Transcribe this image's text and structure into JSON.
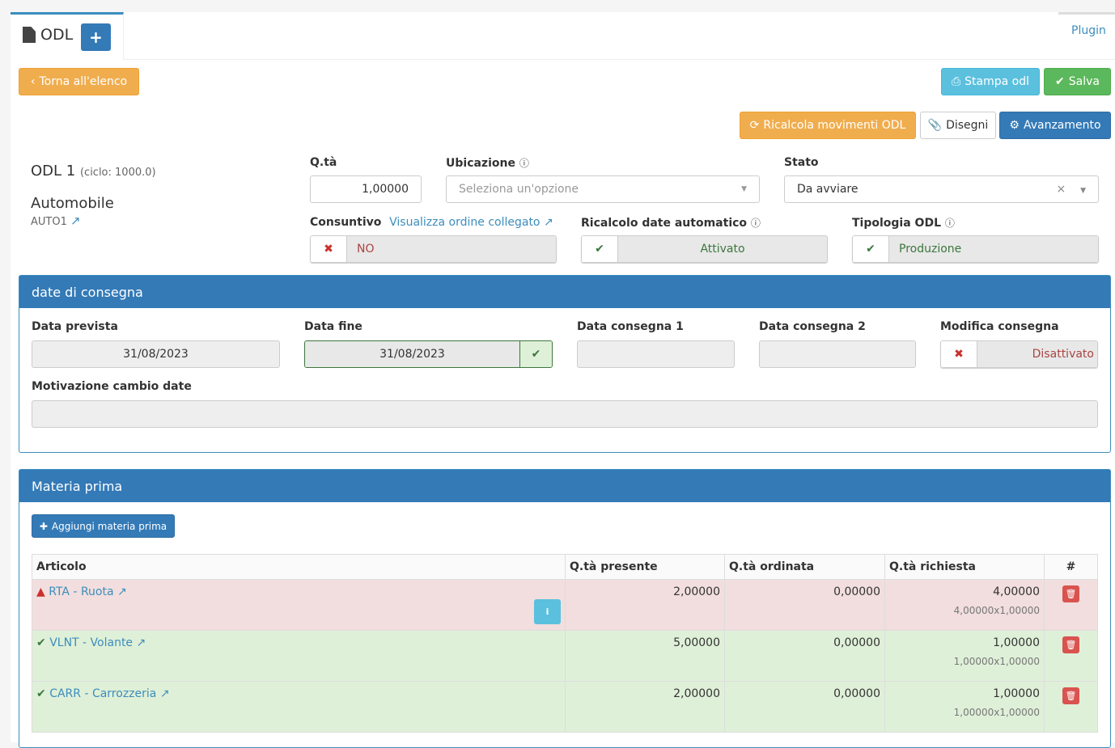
{
  "tab": {
    "title": "ODL",
    "plugin": "Plugin"
  },
  "toolbar": {
    "back": "Torna all'elenco",
    "print": "Stampa odl",
    "save": "Salva",
    "recalc": "Ricalcola movimenti ODL",
    "drawings": "Disegni",
    "progress": "Avanzamento"
  },
  "odl": {
    "name": "ODL 1",
    "cycle": "(ciclo: 1000.0)",
    "product": "Automobile",
    "code": "AUTO1"
  },
  "form": {
    "qty_label": "Q.tà",
    "qty": "1,00000",
    "location_label": "Ubicazione",
    "location_placeholder": "Seleziona un'opzione",
    "state_label": "Stato",
    "state": "Da avviare",
    "final_label": "Consuntivo",
    "linked_order": "Visualizza ordine collegato",
    "final": "NO",
    "recalc_label": "Ricalcolo date automatico",
    "recalc": "Attivato",
    "type_label": "Tipologia ODL",
    "type": "Produzione"
  },
  "delivery": {
    "title": "date di consegna",
    "planned_label": "Data prevista",
    "planned": "31/08/2023",
    "end_label": "Data fine",
    "end": "31/08/2023",
    "d1_label": "Data consegna 1",
    "d1": "",
    "d2_label": "Data consegna 2",
    "d2": "",
    "edit_label": "Modifica consegna",
    "edit": "Disattivato",
    "reason_label": "Motivazione cambio date",
    "reason": ""
  },
  "materials": {
    "title": "Materia prima",
    "add": "Aggiungi materia prima",
    "columns": [
      "Articolo",
      "Q.tà presente",
      "Q.tà ordinata",
      "Q.tà richiesta",
      "#"
    ],
    "rows": [
      {
        "status": "warning",
        "article": "RTA - Ruota",
        "present": "2,00000",
        "ordered": "0,00000",
        "required": "4,00000",
        "detail": "4,00000x1,00000"
      },
      {
        "status": "ok",
        "article": "VLNT - Volante",
        "present": "5,00000",
        "ordered": "0,00000",
        "required": "1,00000",
        "detail": "1,00000x1,00000"
      },
      {
        "status": "ok",
        "article": "CARR - Carrozzeria",
        "present": "2,00000",
        "ordered": "0,00000",
        "required": "1,00000",
        "detail": "1,00000x1,00000"
      }
    ]
  },
  "colors": {
    "primary": "#337ab7",
    "warning": "#f0ad4e",
    "info": "#5bc0de",
    "success": "#5cb85c",
    "danger": "#d9534f"
  }
}
